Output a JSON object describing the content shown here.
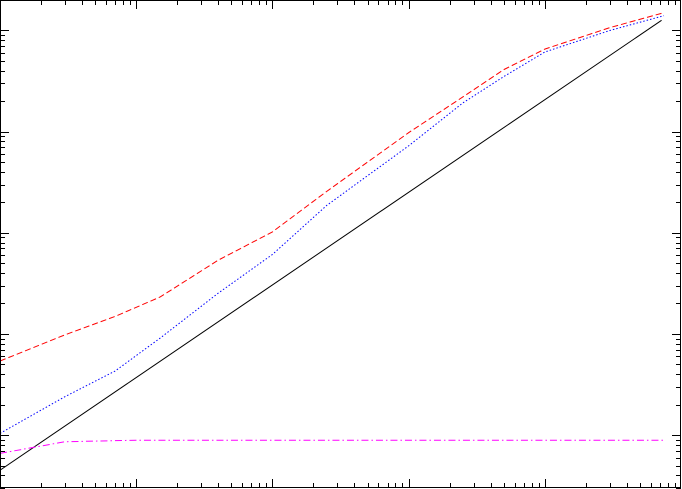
{
  "chart_data": {
    "type": "line",
    "x_scale": "log",
    "y_scale": "log",
    "xlim": [
      1,
      100000
    ],
    "ylim": [
      0.03,
      2000
    ],
    "grid": false,
    "legend": "none",
    "title": "",
    "xlabel": "",
    "ylabel": "",
    "series": [
      {
        "color": "#000000",
        "dash": "solid",
        "points": [
          [
            1,
            0.045
          ],
          [
            72000,
            1260
          ]
        ]
      },
      {
        "color": "#ff0000",
        "dash": "dashed",
        "points": [
          [
            1,
            0.54
          ],
          [
            3,
            0.98
          ],
          [
            7,
            1.49
          ],
          [
            15,
            2.32
          ],
          [
            40,
            5.36
          ],
          [
            100,
            10.2
          ],
          [
            250,
            25.6
          ],
          [
            1000,
            97.6
          ],
          [
            2500,
            220
          ],
          [
            5000,
            410
          ],
          [
            10000,
            654
          ],
          [
            30000,
            1066
          ],
          [
            75000,
            1500
          ]
        ]
      },
      {
        "color": "#0000ff",
        "dash": "dotted",
        "points": [
          [
            1,
            0.104
          ],
          [
            3,
            0.24
          ],
          [
            7,
            0.43
          ],
          [
            15,
            0.91
          ],
          [
            40,
            2.53
          ],
          [
            100,
            6.1
          ],
          [
            250,
            18.6
          ],
          [
            1000,
            72.3
          ],
          [
            2500,
            192
          ],
          [
            5000,
            350
          ],
          [
            10000,
            612
          ],
          [
            30000,
            999
          ],
          [
            75000,
            1400
          ]
        ]
      },
      {
        "color": "#ff00ff",
        "dash": "dash-dot",
        "points": [
          [
            1,
            0.066
          ],
          [
            3,
            0.086
          ],
          [
            10,
            0.089
          ],
          [
            100,
            0.089
          ],
          [
            1000,
            0.089
          ],
          [
            10000,
            0.089
          ],
          [
            75000,
            0.089
          ]
        ]
      }
    ]
  }
}
